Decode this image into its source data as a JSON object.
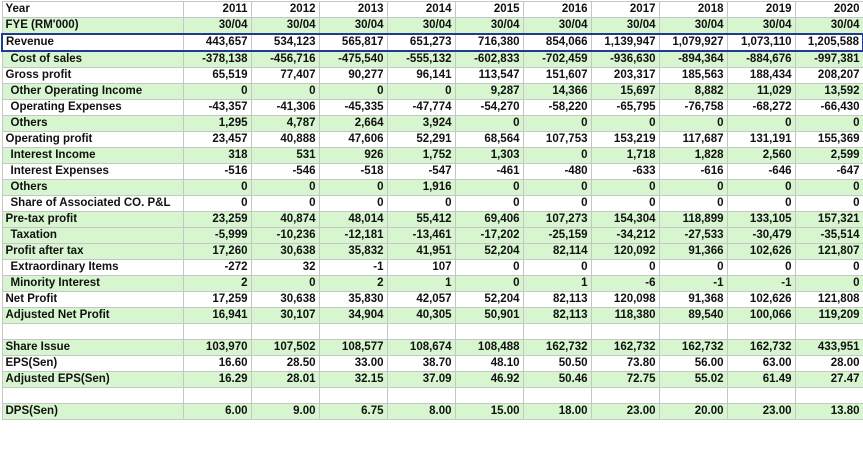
{
  "header": {
    "year_label": "Year",
    "years": [
      "2011",
      "2012",
      "2013",
      "2014",
      "2015",
      "2016",
      "2017",
      "2018",
      "2019",
      "2020"
    ],
    "fye_label": "FYE (RM'000)",
    "fye": [
      "30/04",
      "30/04",
      "30/04",
      "30/04",
      "30/04",
      "30/04",
      "30/04",
      "30/04",
      "30/04",
      "30/04"
    ]
  },
  "rows": [
    {
      "label": "Revenue",
      "values": [
        "443,657",
        "534,123",
        "565,817",
        "651,273",
        "716,380",
        "854,066",
        "1,139,947",
        "1,079,927",
        "1,073,110",
        "1,205,588"
      ]
    },
    {
      "label": "Cost of sales",
      "values": [
        "-378,138",
        "-456,716",
        "-475,540",
        "-555,132",
        "-602,833",
        "-702,459",
        "-936,630",
        "-894,364",
        "-884,676",
        "-997,381"
      ]
    },
    {
      "label": "Gross profit",
      "values": [
        "65,519",
        "77,407",
        "90,277",
        "96,141",
        "113,547",
        "151,607",
        "203,317",
        "185,563",
        "188,434",
        "208,207"
      ]
    },
    {
      "label": "Other Operating Income",
      "values": [
        "0",
        "0",
        "0",
        "0",
        "9,287",
        "14,366",
        "15,697",
        "8,882",
        "11,029",
        "13,592"
      ]
    },
    {
      "label": "Operating Expenses",
      "values": [
        "-43,357",
        "-41,306",
        "-45,335",
        "-47,774",
        "-54,270",
        "-58,220",
        "-65,795",
        "-76,758",
        "-68,272",
        "-66,430"
      ]
    },
    {
      "label": "Others",
      "values": [
        "1,295",
        "4,787",
        "2,664",
        "3,924",
        "0",
        "0",
        "0",
        "0",
        "0",
        "0"
      ]
    },
    {
      "label": "Operating profit",
      "values": [
        "23,457",
        "40,888",
        "47,606",
        "52,291",
        "68,564",
        "107,753",
        "153,219",
        "117,687",
        "131,191",
        "155,369"
      ]
    },
    {
      "label": "Interest Income",
      "values": [
        "318",
        "531",
        "926",
        "1,752",
        "1,303",
        "0",
        "1,718",
        "1,828",
        "2,560",
        "2,599"
      ]
    },
    {
      "label": "Interest Expenses",
      "values": [
        "-516",
        "-546",
        "-518",
        "-547",
        "-461",
        "-480",
        "-633",
        "-616",
        "-646",
        "-647"
      ]
    },
    {
      "label": "Others",
      "values": [
        "0",
        "0",
        "0",
        "1,916",
        "0",
        "0",
        "0",
        "0",
        "0",
        "0"
      ]
    },
    {
      "label": "Share of Associated CO. P&L",
      "values": [
        "0",
        "0",
        "0",
        "0",
        "0",
        "0",
        "0",
        "0",
        "0",
        "0"
      ]
    },
    {
      "label": "Pre-tax profit",
      "values": [
        "23,259",
        "40,874",
        "48,014",
        "55,412",
        "69,406",
        "107,273",
        "154,304",
        "118,899",
        "133,105",
        "157,321"
      ]
    },
    {
      "label": "Taxation",
      "values": [
        "-5,999",
        "-10,236",
        "-12,181",
        "-13,461",
        "-17,202",
        "-25,159",
        "-34,212",
        "-27,533",
        "-30,479",
        "-35,514"
      ]
    },
    {
      "label": "Profit after tax",
      "values": [
        "17,260",
        "30,638",
        "35,832",
        "41,951",
        "52,204",
        "82,114",
        "120,092",
        "91,366",
        "102,626",
        "121,807"
      ]
    },
    {
      "label": "Extraordinary Items",
      "values": [
        "-272",
        "32",
        "-1",
        "107",
        "0",
        "0",
        "0",
        "0",
        "0",
        "0"
      ]
    },
    {
      "label": "Minority Interest",
      "values": [
        "2",
        "0",
        "2",
        "1",
        "0",
        "1",
        "-6",
        "-1",
        "-1",
        "0"
      ]
    },
    {
      "label": "Net Profit",
      "values": [
        "17,259",
        "30,638",
        "35,830",
        "42,057",
        "52,204",
        "82,113",
        "120,098",
        "91,368",
        "102,626",
        "121,808"
      ]
    },
    {
      "label": "Adjusted Net Profit",
      "values": [
        "16,941",
        "30,107",
        "34,904",
        "40,305",
        "50,901",
        "82,113",
        "118,380",
        "89,540",
        "100,066",
        "119,209"
      ]
    },
    {
      "label": "",
      "values": [
        "",
        "",
        "",
        "",
        "",
        "",
        "",
        "",
        "",
        ""
      ]
    },
    {
      "label": "Share Issue",
      "values": [
        "103,970",
        "107,502",
        "108,577",
        "108,674",
        "108,488",
        "162,732",
        "162,732",
        "162,732",
        "162,732",
        "433,951"
      ]
    },
    {
      "label": "EPS(Sen)",
      "values": [
        "16.60",
        "28.50",
        "33.00",
        "38.70",
        "48.10",
        "50.50",
        "73.80",
        "56.00",
        "63.00",
        "28.00"
      ]
    },
    {
      "label": "Adjusted EPS(Sen)",
      "values": [
        "16.29",
        "28.01",
        "32.15",
        "37.09",
        "46.92",
        "50.46",
        "72.75",
        "55.02",
        "61.49",
        "27.47"
      ]
    },
    {
      "label": "",
      "values": [
        "",
        "",
        "",
        "",
        "",
        "",
        "",
        "",
        "",
        ""
      ]
    },
    {
      "label": "DPS(Sen)",
      "values": [
        "6.00",
        "9.00",
        "6.75",
        "8.00",
        "15.00",
        "18.00",
        "23.00",
        "20.00",
        "23.00",
        "13.80"
      ]
    }
  ]
}
